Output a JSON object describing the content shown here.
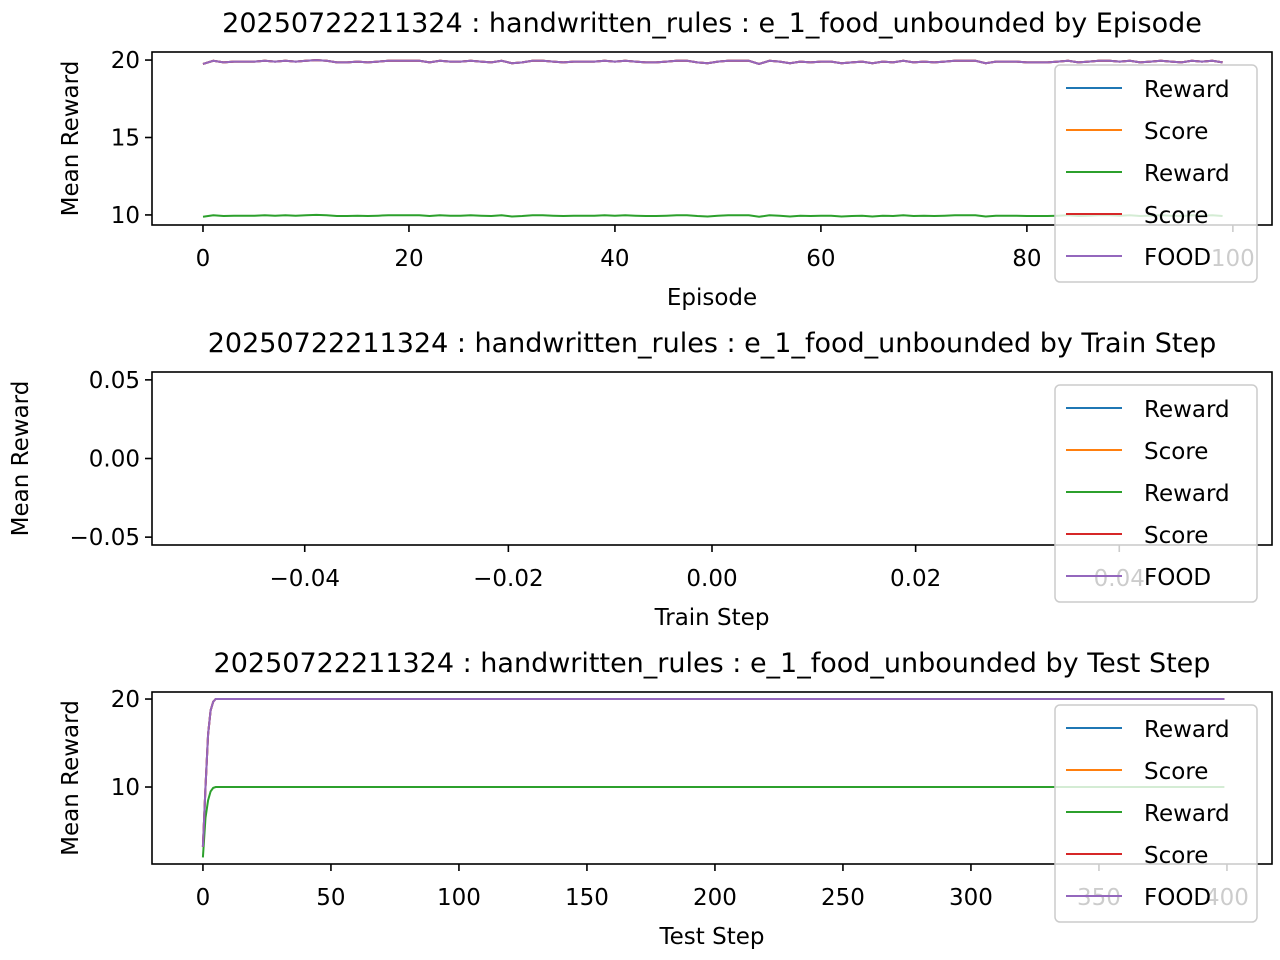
{
  "chart_data": [
    {
      "type": "line",
      "title": "20250722211324 : handwritten_rules : e_1_food_unbounded by Episode",
      "xlabel": "Episode",
      "ylabel": "Mean Reward",
      "xlim": [
        -4.95,
        103.8
      ],
      "ylim": [
        9.35,
        20.52
      ],
      "xticks": [
        0,
        20,
        40,
        60,
        80,
        100
      ],
      "xtick_labels": [
        "0",
        "20",
        "40",
        "60",
        "80",
        "100"
      ],
      "yticks": [
        10,
        15,
        20
      ],
      "ytick_labels": [
        "10",
        "15",
        "20"
      ],
      "grid": false,
      "legend": "right",
      "x_start": 0,
      "series": [
        {
          "name": "Reward",
          "color": "#1f77b4",
          "values": [
            19.75,
            19.95,
            19.85,
            19.9,
            19.9,
            19.9,
            19.95,
            19.9,
            19.95,
            19.9,
            19.95,
            20.0,
            19.95,
            19.85,
            19.85,
            19.9,
            19.85,
            19.9,
            19.95,
            19.95,
            19.95,
            19.95,
            19.85,
            19.95,
            19.9,
            19.9,
            19.95,
            19.9,
            19.85,
            19.95,
            19.8,
            19.85,
            19.95,
            19.95,
            19.9,
            19.85,
            19.9,
            19.9,
            19.9,
            19.95,
            19.9,
            19.95,
            19.9,
            19.85,
            19.85,
            19.9,
            19.95,
            19.95,
            19.85,
            19.8,
            19.9,
            19.95,
            19.95,
            19.95,
            19.75,
            19.95,
            19.9,
            19.8,
            19.9,
            19.85,
            19.9,
            19.9,
            19.8,
            19.85,
            19.9,
            19.8,
            19.9,
            19.85,
            19.95,
            19.85,
            19.9,
            19.85,
            19.9,
            19.95,
            19.95,
            19.95,
            19.8,
            19.9,
            19.9,
            19.9,
            19.85,
            19.85,
            19.85,
            19.9,
            19.95,
            19.85,
            19.9,
            19.95,
            19.95,
            19.9,
            19.95,
            19.85,
            19.9,
            19.95,
            19.9,
            19.85,
            19.95,
            19.9,
            19.95,
            19.85
          ]
        },
        {
          "name": "Score",
          "color": "#ff7f0e",
          "values": [
            19.75,
            19.95,
            19.85,
            19.9,
            19.9,
            19.9,
            19.95,
            19.9,
            19.95,
            19.9,
            19.95,
            20.0,
            19.95,
            19.85,
            19.85,
            19.9,
            19.85,
            19.9,
            19.95,
            19.95,
            19.95,
            19.95,
            19.85,
            19.95,
            19.9,
            19.9,
            19.95,
            19.9,
            19.85,
            19.95,
            19.8,
            19.85,
            19.95,
            19.95,
            19.9,
            19.85,
            19.9,
            19.9,
            19.9,
            19.95,
            19.9,
            19.95,
            19.9,
            19.85,
            19.85,
            19.9,
            19.95,
            19.95,
            19.85,
            19.8,
            19.9,
            19.95,
            19.95,
            19.95,
            19.75,
            19.95,
            19.9,
            19.8,
            19.9,
            19.85,
            19.9,
            19.9,
            19.8,
            19.85,
            19.9,
            19.8,
            19.9,
            19.85,
            19.95,
            19.85,
            19.9,
            19.85,
            19.9,
            19.95,
            19.95,
            19.95,
            19.8,
            19.9,
            19.9,
            19.9,
            19.85,
            19.85,
            19.85,
            19.9,
            19.95,
            19.85,
            19.9,
            19.95,
            19.95,
            19.9,
            19.95,
            19.85,
            19.9,
            19.95,
            19.9,
            19.85,
            19.95,
            19.9,
            19.95,
            19.85
          ]
        },
        {
          "name": "Reward",
          "color": "#2ca02c",
          "values": [
            9.88,
            9.98,
            9.93,
            9.95,
            9.95,
            9.95,
            9.98,
            9.95,
            9.98,
            9.95,
            9.98,
            10.0,
            9.98,
            9.93,
            9.93,
            9.95,
            9.93,
            9.95,
            9.98,
            9.98,
            9.98,
            9.98,
            9.93,
            9.98,
            9.95,
            9.95,
            9.98,
            9.95,
            9.93,
            9.98,
            9.9,
            9.93,
            9.98,
            9.98,
            9.95,
            9.93,
            9.95,
            9.95,
            9.95,
            9.98,
            9.95,
            9.98,
            9.95,
            9.93,
            9.93,
            9.95,
            9.98,
            9.98,
            9.93,
            9.9,
            9.95,
            9.98,
            9.98,
            9.98,
            9.88,
            9.98,
            9.95,
            9.9,
            9.95,
            9.93,
            9.95,
            9.95,
            9.9,
            9.93,
            9.95,
            9.9,
            9.95,
            9.93,
            9.98,
            9.93,
            9.95,
            9.93,
            9.95,
            9.98,
            9.98,
            9.98,
            9.9,
            9.95,
            9.95,
            9.95,
            9.93,
            9.93,
            9.93,
            9.95,
            9.98,
            9.93,
            9.95,
            9.98,
            9.98,
            9.95,
            9.98,
            9.93,
            9.95,
            9.98,
            9.95,
            9.93,
            9.98,
            9.95,
            9.98,
            9.93
          ]
        },
        {
          "name": "Score",
          "color": "#d62728",
          "values": [
            19.75,
            19.95,
            19.85,
            19.9,
            19.9,
            19.9,
            19.95,
            19.9,
            19.95,
            19.9,
            19.95,
            20.0,
            19.95,
            19.85,
            19.85,
            19.9,
            19.85,
            19.9,
            19.95,
            19.95,
            19.95,
            19.95,
            19.85,
            19.95,
            19.9,
            19.9,
            19.95,
            19.9,
            19.85,
            19.95,
            19.8,
            19.85,
            19.95,
            19.95,
            19.9,
            19.85,
            19.9,
            19.9,
            19.9,
            19.95,
            19.9,
            19.95,
            19.9,
            19.85,
            19.85,
            19.9,
            19.95,
            19.95,
            19.85,
            19.8,
            19.9,
            19.95,
            19.95,
            19.95,
            19.75,
            19.95,
            19.9,
            19.8,
            19.9,
            19.85,
            19.9,
            19.9,
            19.8,
            19.85,
            19.9,
            19.8,
            19.9,
            19.85,
            19.95,
            19.85,
            19.9,
            19.85,
            19.9,
            19.95,
            19.95,
            19.95,
            19.8,
            19.9,
            19.9,
            19.9,
            19.85,
            19.85,
            19.85,
            19.9,
            19.95,
            19.85,
            19.9,
            19.95,
            19.95,
            19.9,
            19.95,
            19.85,
            19.9,
            19.95,
            19.9,
            19.85,
            19.95,
            19.9,
            19.95,
            19.85
          ]
        },
        {
          "name": "FOOD",
          "color": "#9467bd",
          "values": [
            19.75,
            19.95,
            19.85,
            19.9,
            19.9,
            19.9,
            19.95,
            19.9,
            19.95,
            19.9,
            19.95,
            20.0,
            19.95,
            19.85,
            19.85,
            19.9,
            19.85,
            19.9,
            19.95,
            19.95,
            19.95,
            19.95,
            19.85,
            19.95,
            19.9,
            19.9,
            19.95,
            19.9,
            19.85,
            19.95,
            19.8,
            19.85,
            19.95,
            19.95,
            19.9,
            19.85,
            19.9,
            19.9,
            19.9,
            19.95,
            19.9,
            19.95,
            19.9,
            19.85,
            19.85,
            19.9,
            19.95,
            19.95,
            19.85,
            19.8,
            19.9,
            19.95,
            19.95,
            19.95,
            19.75,
            19.95,
            19.9,
            19.8,
            19.9,
            19.85,
            19.9,
            19.9,
            19.8,
            19.85,
            19.9,
            19.8,
            19.9,
            19.85,
            19.95,
            19.85,
            19.9,
            19.85,
            19.9,
            19.95,
            19.95,
            19.95,
            19.8,
            19.9,
            19.9,
            19.9,
            19.85,
            19.85,
            19.85,
            19.9,
            19.95,
            19.85,
            19.9,
            19.95,
            19.95,
            19.9,
            19.95,
            19.85,
            19.9,
            19.95,
            19.9,
            19.85,
            19.95,
            19.9,
            19.95,
            19.85
          ]
        }
      ]
    },
    {
      "type": "line",
      "title": "20250722211324 : handwritten_rules : e_1_food_unbounded by Train Step",
      "xlabel": "Train Step",
      "ylabel": "Mean Reward",
      "xlim": [
        -0.055,
        0.055
      ],
      "ylim": [
        -0.055,
        0.055
      ],
      "xticks": [
        -0.04,
        -0.02,
        0,
        0.02,
        0.04
      ],
      "xtick_labels": [
        "−0.04",
        "−0.02",
        "0.00",
        "0.02",
        "0.04"
      ],
      "yticks": [
        -0.05,
        0,
        0.05
      ],
      "ytick_labels": [
        "−0.05",
        "0.00",
        "0.05"
      ],
      "grid": false,
      "legend": "right",
      "series": [
        {
          "name": "Reward",
          "color": "#1f77b4",
          "values": []
        },
        {
          "name": "Score",
          "color": "#ff7f0e",
          "values": []
        },
        {
          "name": "Reward",
          "color": "#2ca02c",
          "values": []
        },
        {
          "name": "Score",
          "color": "#d62728",
          "values": []
        },
        {
          "name": "FOOD",
          "color": "#9467bd",
          "values": []
        }
      ]
    },
    {
      "type": "line",
      "title": "20250722211324 : handwritten_rules : e_1_food_unbounded by Test Step",
      "xlabel": "Test Step",
      "ylabel": "Mean Reward",
      "xlim": [
        -19.9,
        417.6
      ],
      "ylim": [
        1.25,
        20.8
      ],
      "xticks": [
        0,
        50,
        100,
        150,
        200,
        250,
        300,
        350,
        400
      ],
      "xtick_labels": [
        "0",
        "50",
        "100",
        "150",
        "200",
        "250",
        "300",
        "350",
        "400"
      ],
      "yticks": [
        10,
        20
      ],
      "ytick_labels": [
        "10",
        "20"
      ],
      "grid": false,
      "legend": "right",
      "x": [
        0,
        1,
        2,
        3,
        4,
        5,
        399
      ],
      "series": [
        {
          "name": "Reward",
          "color": "#1f77b4",
          "values": [
            3.2,
            10.0,
            16.0,
            18.7,
            19.7,
            20.0,
            20.0
          ]
        },
        {
          "name": "Score",
          "color": "#ff7f0e",
          "values": [
            3.2,
            10.0,
            16.0,
            18.7,
            19.7,
            20.0,
            20.0
          ]
        },
        {
          "name": "Reward",
          "color": "#2ca02c",
          "values": [
            2.0,
            6.5,
            8.5,
            9.5,
            9.9,
            10.0,
            10.0
          ]
        },
        {
          "name": "Score",
          "color": "#d62728",
          "values": [
            3.2,
            10.0,
            16.0,
            18.7,
            19.7,
            20.0,
            20.0
          ]
        },
        {
          "name": "FOOD",
          "color": "#9467bd",
          "values": [
            3.2,
            10.0,
            16.0,
            18.7,
            19.7,
            20.0,
            20.0
          ]
        }
      ]
    }
  ]
}
